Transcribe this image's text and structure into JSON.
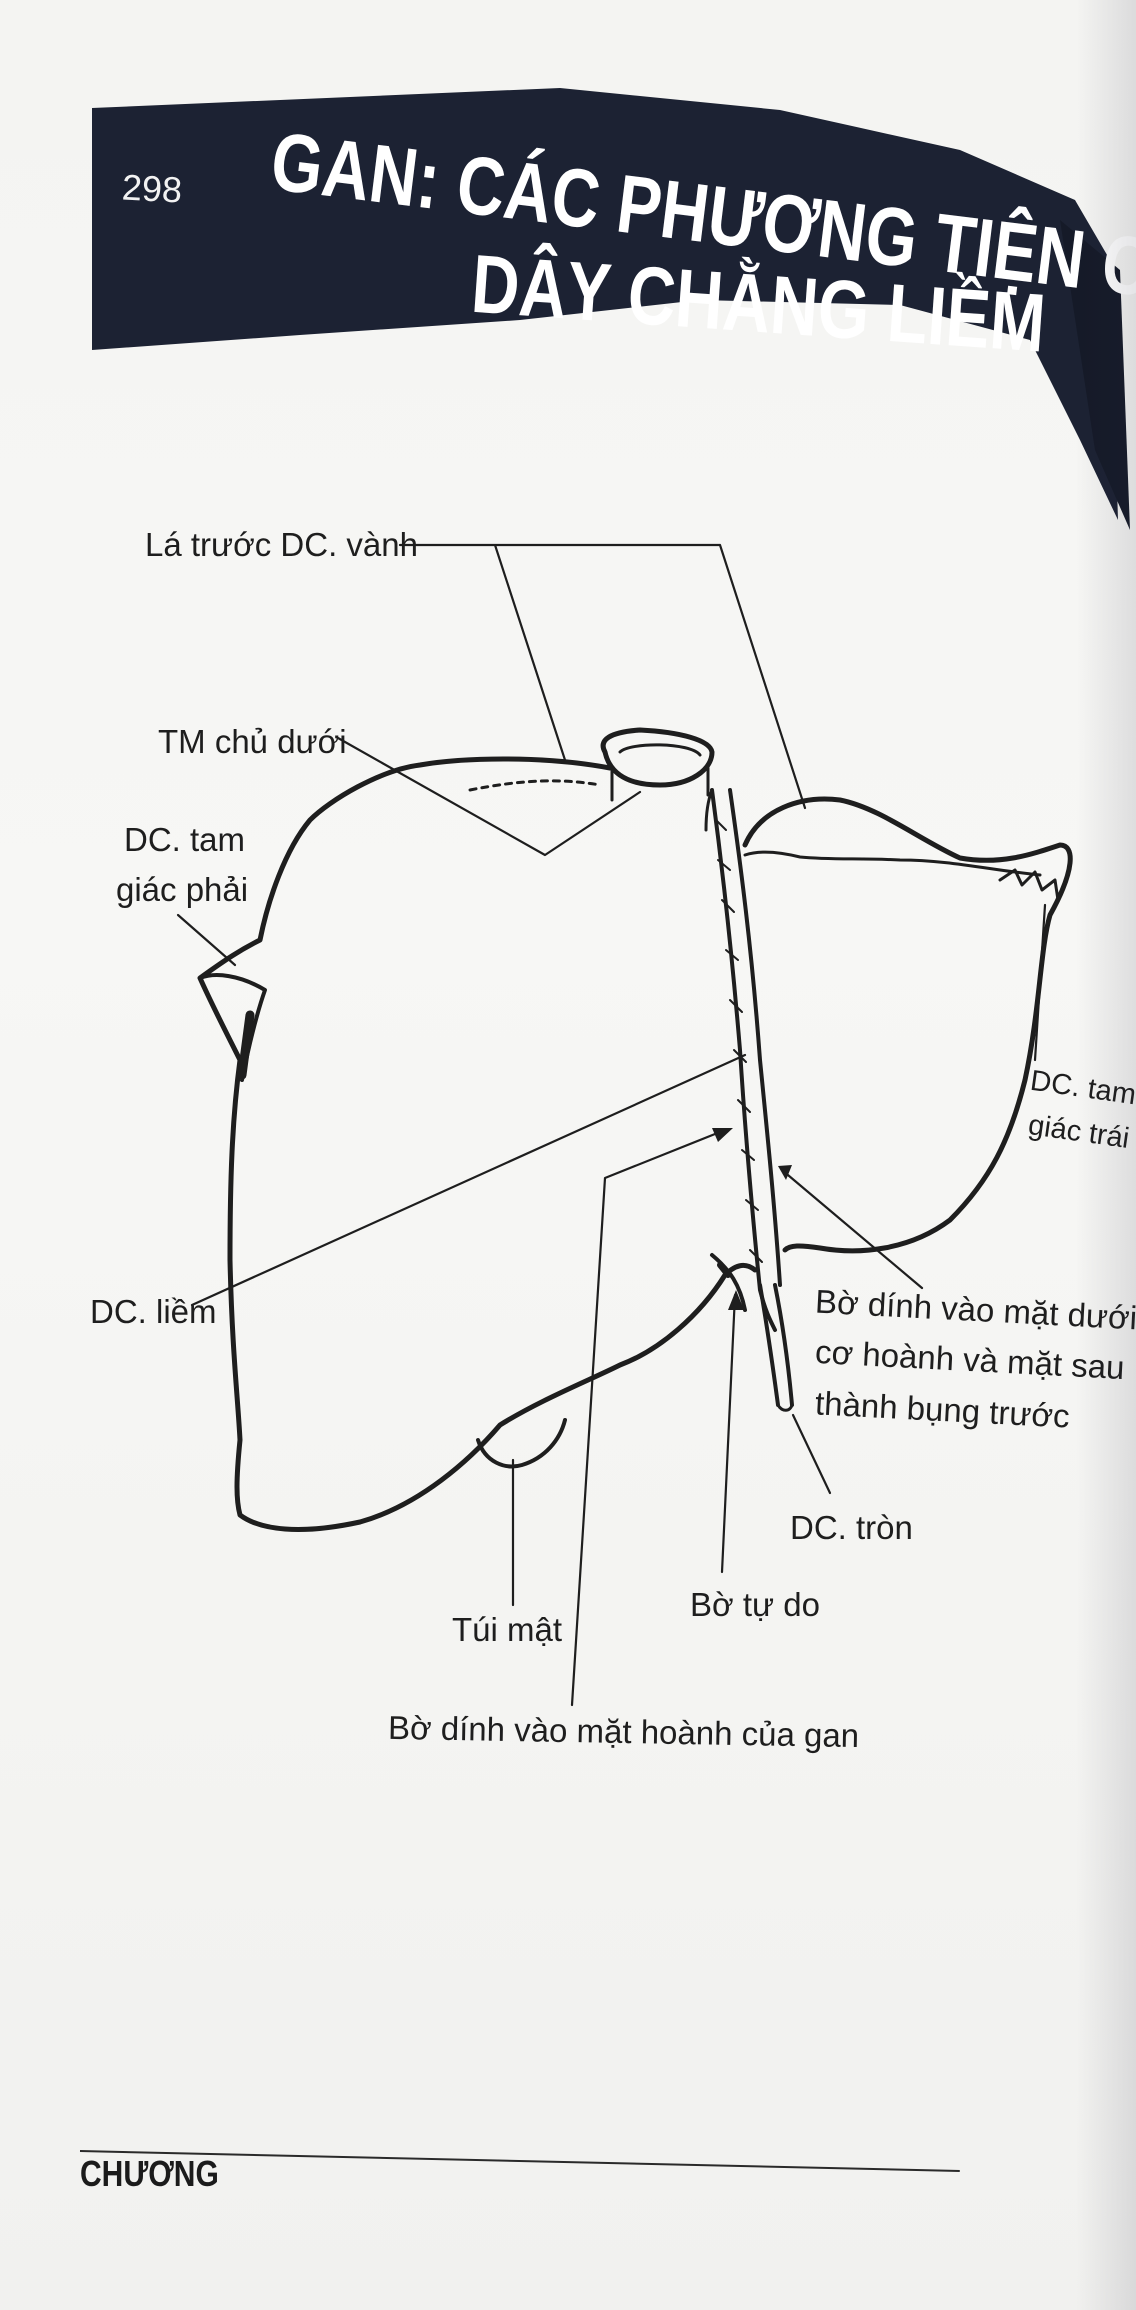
{
  "page": {
    "number": "298",
    "title_line1": "GAN: CÁC PHƯƠNG TIỆN CỐ ĐỊNH GAN -",
    "title_line2": "DÂY CHẰNG LIỀM",
    "footer": "CHƯƠNG"
  },
  "labels": {
    "la_truoc_dc_vanh": "Lá trước DC. vành",
    "tm_chu_duoi": "TM chủ dưới",
    "dc_tam_giac_phai_1": "DC. tam",
    "dc_tam_giac_phai_2": "giác phải",
    "dc_tam_giac_trai_1": "DC. tam",
    "dc_tam_giac_trai_2": "giác trái",
    "dc_liem": "DC. liềm",
    "bo_dinh_duoi_1": "Bờ dính vào mặt dưới",
    "bo_dinh_duoi_2": "cơ hoành và mặt sau",
    "bo_dinh_duoi_3": "thành bụng trước",
    "dc_tron": "DC. tròn",
    "bo_tu_do": "Bờ tự do",
    "tui_mat": "Túi mật",
    "bo_dinh_hoanh": "Bờ dính vào mặt hoành của gan"
  },
  "colors": {
    "header_band": "#1c2233",
    "ink": "#1e1e1e",
    "paper": "#f5f5f3"
  }
}
